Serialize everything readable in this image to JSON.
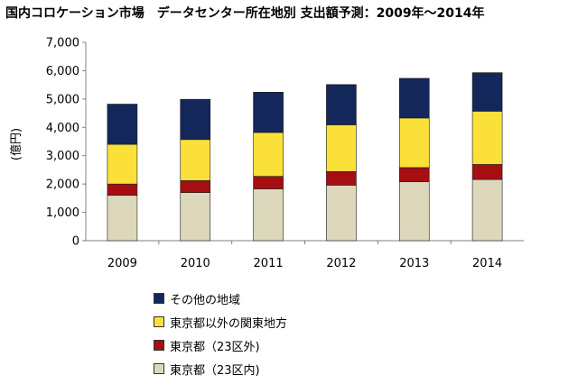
{
  "chart_data": {
    "type": "bar",
    "stacked": true,
    "title": "国内コロケーション市場　データセンター所在地別 支出額予測：2009年～2014年",
    "ylabel": "(億円)",
    "xlabel": "",
    "categories": [
      "2009",
      "2010",
      "2011",
      "2012",
      "2013",
      "2014"
    ],
    "ylim": [
      0,
      7000
    ],
    "yticks": [
      "0",
      "1,000",
      "2,000",
      "3,000",
      "4,000",
      "5,000",
      "6,000",
      "7,000"
    ],
    "grid": false,
    "legend_position": "bottom",
    "series": [
      {
        "name": "東京都（23区内)",
        "color": "#ddd8bc",
        "values": [
          1600,
          1700,
          1830,
          1960,
          2080,
          2160
        ]
      },
      {
        "name": "東京都（23区外)",
        "color": "#a50f12",
        "values": [
          400,
          420,
          440,
          480,
          500,
          530
        ]
      },
      {
        "name": "東京都以外の関東地方",
        "color": "#fbe03a",
        "values": [
          1400,
          1450,
          1550,
          1650,
          1750,
          1880
        ]
      },
      {
        "name": "その他の地域",
        "color": "#13275a",
        "values": [
          1420,
          1420,
          1420,
          1420,
          1400,
          1360
        ]
      }
    ]
  }
}
